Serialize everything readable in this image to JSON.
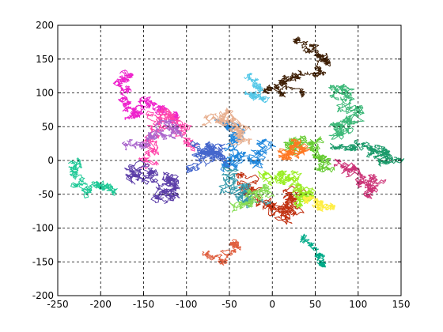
{
  "chart_data": {
    "type": "line",
    "title": "",
    "xlabel": "",
    "ylabel": "",
    "xlim": [
      -250,
      150
    ],
    "ylim": [
      -200,
      200
    ],
    "xticks": [
      -250,
      -200,
      -150,
      -100,
      -50,
      0,
      50,
      100,
      150
    ],
    "yticks": [
      -200,
      -150,
      -100,
      -50,
      0,
      50,
      100,
      150,
      200
    ],
    "grid": true,
    "grid_style": "dashed",
    "box": true,
    "series": [
      {
        "color": "#20c997",
        "start": [
          -228,
          -2
        ],
        "end": [
          -185,
          -50
        ],
        "waypoints": [
          [
            -228,
            -2
          ],
          [
            -232,
            -20
          ],
          [
            -218,
            -45
          ],
          [
            -196,
            -32
          ],
          [
            -185,
            -50
          ]
        ],
        "roam": 6
      },
      {
        "color": "#ee22cc",
        "start": [
          -165,
          130
        ],
        "end": [
          -155,
          70
        ],
        "waypoints": [
          [
            -165,
            130
          ],
          [
            -178,
            118
          ],
          [
            -172,
            90
          ],
          [
            -160,
            60
          ],
          [
            -148,
            85
          ],
          [
            -130,
            75
          ],
          [
            -115,
            60
          ]
        ],
        "roam": 6
      },
      {
        "color": "#ff44aa",
        "start": [
          -150,
          -10
        ],
        "end": [
          -105,
          55
        ],
        "waypoints": [
          [
            -150,
            -10
          ],
          [
            -140,
            30
          ],
          [
            -125,
            68
          ],
          [
            -110,
            55
          ],
          [
            -100,
            20
          ]
        ],
        "roam": 9
      },
      {
        "color": "#5c3ea8",
        "start": [
          -160,
          -35
        ],
        "end": [
          -120,
          -45
        ],
        "waypoints": [
          [
            -160,
            -35
          ],
          [
            -150,
            -5
          ],
          [
            -130,
            -55
          ],
          [
            -115,
            -25
          ],
          [
            -120,
            -45
          ]
        ],
        "roam": 9
      },
      {
        "color": "#3f2006",
        "start": [
          30,
          175
        ],
        "end": [
          -5,
          105
        ],
        "waypoints": [
          [
            30,
            175
          ],
          [
            50,
            160
          ],
          [
            65,
            148
          ],
          [
            45,
            128
          ],
          [
            15,
            118
          ],
          [
            -5,
            105
          ],
          [
            40,
            95
          ]
        ],
        "roam": 6
      },
      {
        "color": "#3cb878",
        "start": [
          70,
          110
        ],
        "end": [
          80,
          40
        ],
        "waypoints": [
          [
            70,
            110
          ],
          [
            90,
            95
          ],
          [
            100,
            70
          ],
          [
            75,
            55
          ],
          [
            80,
            40
          ]
        ],
        "roam": 9
      },
      {
        "color": "#2288dd",
        "start": [
          -60,
          60
        ],
        "end": [
          -20,
          -10
        ],
        "waypoints": [
          [
            -60,
            60
          ],
          [
            -40,
            30
          ],
          [
            -55,
            0
          ],
          [
            -20,
            -10
          ],
          [
            -10,
            30
          ]
        ],
        "roam": 10
      },
      {
        "color": "#c03010",
        "start": [
          -30,
          -20
        ],
        "end": [
          10,
          -95
        ],
        "waypoints": [
          [
            -30,
            -20
          ],
          [
            -15,
            -60
          ],
          [
            15,
            -80
          ],
          [
            30,
            -45
          ],
          [
            10,
            -95
          ]
        ],
        "roam": 10
      },
      {
        "color": "#e06040",
        "start": [
          -80,
          -135
        ],
        "end": [
          -45,
          -120
        ],
        "waypoints": [
          [
            -80,
            -135
          ],
          [
            -55,
            -150
          ],
          [
            -40,
            -125
          ],
          [
            -45,
            -120
          ]
        ],
        "roam": 5
      },
      {
        "color": "#00aa88",
        "start": [
          35,
          -110
        ],
        "end": [
          58,
          -155
        ],
        "waypoints": [
          [
            35,
            -110
          ],
          [
            50,
            -135
          ],
          [
            60,
            -150
          ],
          [
            58,
            -155
          ]
        ],
        "roam": 4
      },
      {
        "color": "#99ee22",
        "start": [
          -10,
          -30
        ],
        "end": [
          30,
          -60
        ],
        "waypoints": [
          [
            -10,
            -30
          ],
          [
            20,
            -20
          ],
          [
            45,
            -50
          ],
          [
            30,
            -60
          ]
        ],
        "roam": 10
      },
      {
        "color": "#55c8e8",
        "start": [
          -30,
          125
        ],
        "end": [
          -5,
          90
        ],
        "waypoints": [
          [
            -30,
            125
          ],
          [
            -15,
            110
          ],
          [
            -25,
            95
          ],
          [
            -5,
            90
          ]
        ],
        "roam": 5
      },
      {
        "color": "#e8b090",
        "start": [
          -75,
          55
        ],
        "end": [
          -40,
          35
        ],
        "waypoints": [
          [
            -75,
            55
          ],
          [
            -55,
            70
          ],
          [
            -40,
            45
          ],
          [
            -40,
            35
          ]
        ],
        "roam": 8
      },
      {
        "color": "#cc3377",
        "start": [
          75,
          -5
        ],
        "end": [
          120,
          -35
        ],
        "waypoints": [
          [
            75,
            -5
          ],
          [
            100,
            -20
          ],
          [
            115,
            -45
          ],
          [
            120,
            -35
          ]
        ],
        "roam": 8
      },
      {
        "color": "#66cc33",
        "start": [
          20,
          20
        ],
        "end": [
          60,
          -10
        ],
        "waypoints": [
          [
            20,
            20
          ],
          [
            40,
            30
          ],
          [
            55,
            10
          ],
          [
            60,
            -10
          ]
        ],
        "roam": 10
      },
      {
        "color": "#ffee44",
        "start": [
          40,
          -55
        ],
        "end": [
          70,
          -70
        ],
        "waypoints": [
          [
            40,
            -55
          ],
          [
            55,
            -65
          ],
          [
            70,
            -70
          ]
        ],
        "roam": 6
      },
      {
        "color": "#4466cc",
        "start": [
          -90,
          -10
        ],
        "end": [
          -60,
          10
        ],
        "waypoints": [
          [
            -90,
            -10
          ],
          [
            -75,
            15
          ],
          [
            -60,
            10
          ],
          [
            -85,
            30
          ]
        ],
        "roam": 10
      },
      {
        "color": "#aa66cc",
        "start": [
          -170,
          20
        ],
        "end": [
          -110,
          40
        ],
        "waypoints": [
          [
            -170,
            20
          ],
          [
            -140,
            30
          ],
          [
            -120,
            50
          ],
          [
            -110,
            40
          ]
        ],
        "roam": 7
      },
      {
        "color": "#3399aa",
        "start": [
          -50,
          -20
        ],
        "end": [
          -20,
          -60
        ],
        "waypoints": [
          [
            -50,
            -20
          ],
          [
            -35,
            -40
          ],
          [
            -20,
            -60
          ]
        ],
        "roam": 10
      },
      {
        "color": "#1a9a6a",
        "start": [
          70,
          20
        ],
        "end": [
          120,
          5
        ],
        "waypoints": [
          [
            70,
            20
          ],
          [
            100,
            25
          ],
          [
            125,
            10
          ],
          [
            140,
            0
          ],
          [
            120,
            5
          ]
        ],
        "roam": 7
      },
      {
        "color": "#ff7722",
        "start": [
          10,
          0
        ],
        "end": [
          40,
          25
        ],
        "waypoints": [
          [
            10,
            0
          ],
          [
            25,
            15
          ],
          [
            40,
            25
          ]
        ],
        "roam": 8
      },
      {
        "color": "#88dd55",
        "start": [
          -40,
          -70
        ],
        "end": [
          -5,
          -40
        ],
        "waypoints": [
          [
            -40,
            -70
          ],
          [
            -20,
            -55
          ],
          [
            -5,
            -40
          ]
        ],
        "roam": 8
      }
    ]
  }
}
